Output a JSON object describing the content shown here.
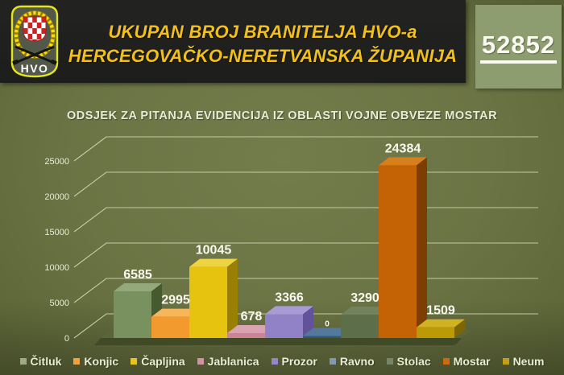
{
  "header": {
    "logo_text": "HVO",
    "title_line1": "UKUPAN BROJ BRANITELJA HVO-a",
    "title_line2": "HERCEGOVAČKO-NERETVANSKA ŽUPANIJA",
    "total_badge": "52852"
  },
  "chart_title": "ODSJEK ZA PITANJA EVIDENCIJA IZ OBLASTI VOJNE OBVEZE MOSTAR",
  "chart_data": {
    "type": "bar",
    "style": "3d-perspective",
    "title": "ODSJEK ZA PITANJA EVIDENCIJA IZ OBLASTI VOJNE OBVEZE MOSTAR",
    "categories": [
      "Čitluk",
      "Konjic",
      "Čapljina",
      "Jablanica",
      "Prozor",
      "Ravno",
      "Stolac",
      "Mostar",
      "Neum"
    ],
    "values": [
      6585,
      2995,
      10045,
      678,
      3366,
      0,
      3290,
      24384,
      1509
    ],
    "value_labels": [
      "6585",
      "2995",
      "10045",
      "678",
      "3366",
      "0",
      "3290",
      "24384",
      "1509"
    ],
    "y_ticks": [
      0,
      5000,
      10000,
      15000,
      20000,
      25000
    ],
    "ylim": [
      0,
      27500
    ],
    "grid": true,
    "legend_position": "bottom",
    "bar_colors": [
      {
        "front": "#78915f",
        "side": "#46592f",
        "top": "#94a87c",
        "legend": "#9cab86"
      },
      {
        "front": "#f39a2e",
        "side": "#b06a14",
        "top": "#f6b659",
        "legend": "#f0a03c"
      },
      {
        "front": "#e5c30e",
        "side": "#9a7f05",
        "top": "#eed344",
        "legend": "#e8c41c"
      },
      {
        "front": "#ca8494",
        "side": "#8f5a66",
        "top": "#d9a3b1",
        "legend": "#cf93a6"
      },
      {
        "front": "#9181c6",
        "side": "#62519b",
        "top": "#a99cd6",
        "legend": "#9486c8"
      },
      {
        "front": "#30597d",
        "side": "#1f3d58",
        "top": "#54799c",
        "legend": "#7e9ab0"
      },
      {
        "front": "#5d6e4b",
        "side": "#3a4630",
        "top": "#72825c",
        "legend": "#76846a"
      },
      {
        "front": "#c36305",
        "side": "#7d3e02",
        "top": "#d77f1c",
        "legend": "#cc6a10"
      },
      {
        "front": "#bc9905",
        "side": "#7d6603",
        "top": "#d1b222",
        "legend": "#c0a018"
      }
    ]
  },
  "colors": {
    "background": "#6b7444",
    "banner": "#1e1e1c",
    "accent_yellow": "#f2c01b",
    "badge_bg": "#8d9d6f",
    "text_pale": "#e7edd3",
    "gridline": "#ccd5ae",
    "label_white": "#faf8ef",
    "floor_top": "#5b6637",
    "floor_front": "#404a26"
  }
}
